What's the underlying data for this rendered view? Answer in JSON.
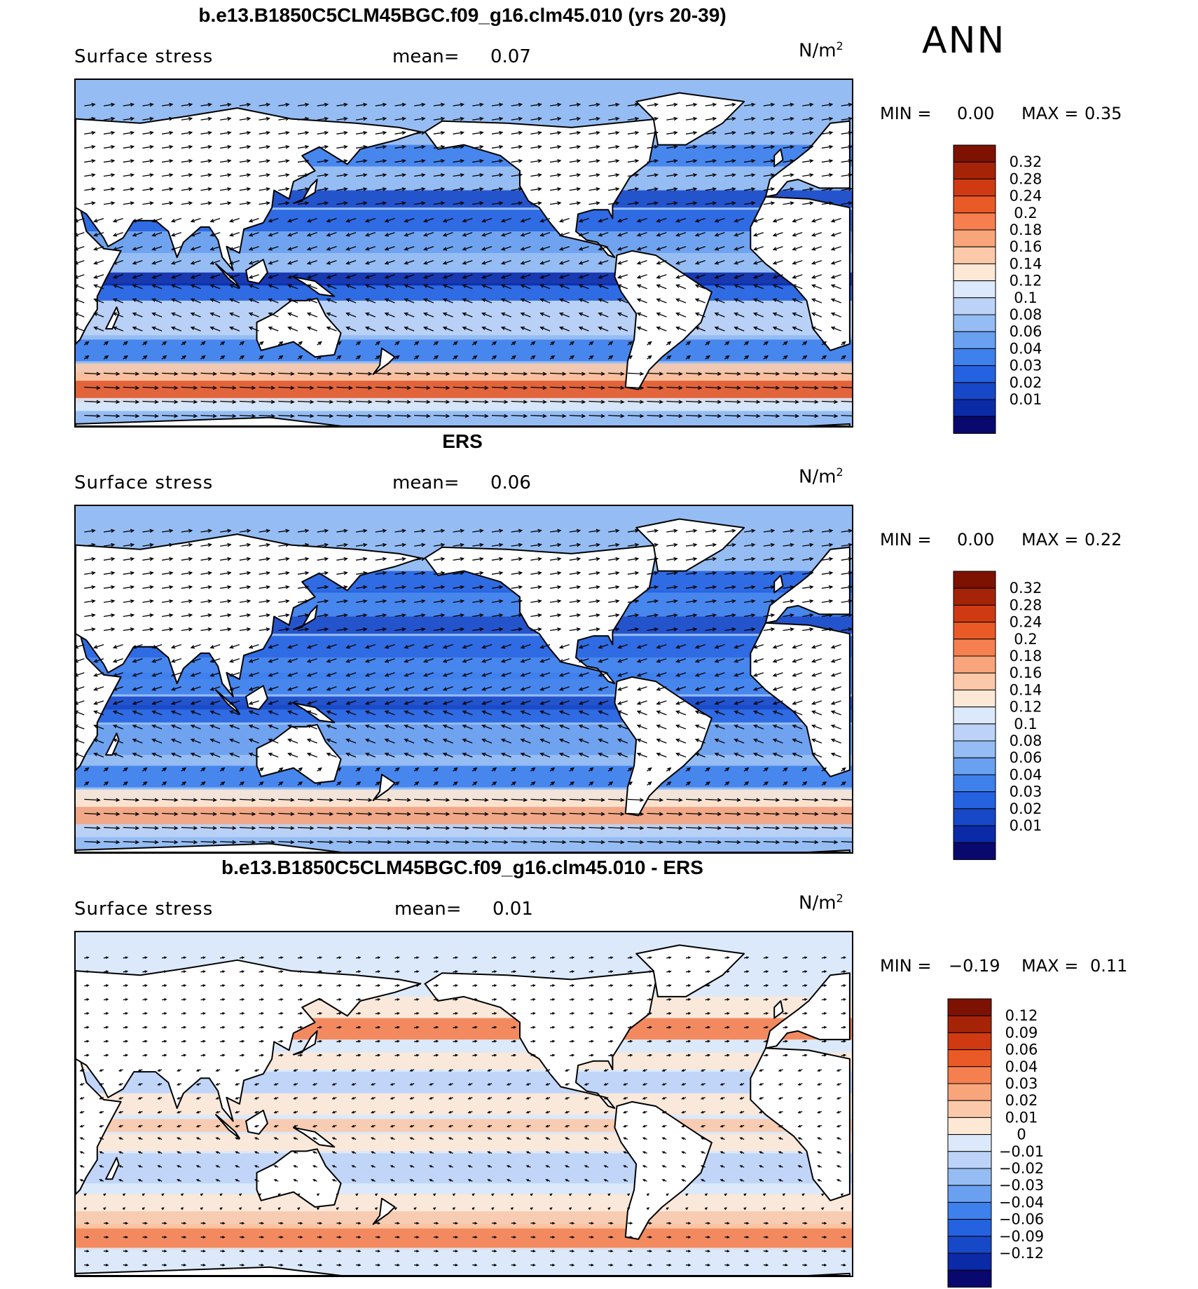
{
  "season": "ANN",
  "colors": {
    "seq": [
      "#08086e",
      "#0b2aa8",
      "#1748c8",
      "#2462e0",
      "#3e80ec",
      "#6aa0f0",
      "#95bdf4",
      "#bcd3f7",
      "#dbe9fb",
      "#fde8d6",
      "#fbc9aa",
      "#f9a57c",
      "#f57f4e",
      "#ea5a27",
      "#cf3a12",
      "#a52408",
      "#7d1203"
    ],
    "diff": [
      "#08086e",
      "#0b2aa8",
      "#1748c8",
      "#2462e0",
      "#3e80ec",
      "#6aa0f0",
      "#95bdf4",
      "#bcd3f7",
      "#dbe9fb",
      "#fde8d6",
      "#fbc9aa",
      "#f9a57c",
      "#f57f4e",
      "#ea5a27",
      "#cf3a12",
      "#a52408",
      "#7d1203"
    ]
  },
  "panels": [
    {
      "title": "b.e13.B1850C5CLM45BGC.f09_g16.clm45.010 (yrs 20-39)",
      "variable": "Surface stress",
      "mean_label": "mean=",
      "mean_value": "0.07",
      "units": "N/m",
      "units_sup": "2",
      "min_label": "MIN =",
      "min_value": "0.00",
      "max_label": "MAX =",
      "max_value": "0.35",
      "colorbar_labels": [
        "0.32",
        "0.28",
        "0.24",
        "0.2",
        "0.18",
        "0.16",
        "0.14",
        "0.12",
        "0.1",
        "0.08",
        "0.06",
        "0.04",
        "0.03",
        "0.02",
        "0.01"
      ]
    },
    {
      "title": "ERS",
      "variable": "Surface stress",
      "mean_label": "mean=",
      "mean_value": "0.06",
      "units": "N/m",
      "units_sup": "2",
      "min_label": "MIN =",
      "min_value": "0.00",
      "max_label": "MAX =",
      "max_value": "0.22",
      "colorbar_labels": [
        "0.32",
        "0.28",
        "0.24",
        "0.2",
        "0.18",
        "0.16",
        "0.14",
        "0.12",
        "0.1",
        "0.08",
        "0.06",
        "0.04",
        "0.03",
        "0.02",
        "0.01"
      ]
    },
    {
      "title": "b.e13.B1850C5CLM45BGC.f09_g16.clm45.010 - ERS",
      "variable": "Surface stress",
      "mean_label": "mean=",
      "mean_value": "0.01",
      "units": "N/m",
      "units_sup": "2",
      "min_label": "MIN =",
      "min_value": "−0.19",
      "max_label": "MAX =",
      "max_value": "0.11",
      "colorbar_labels": [
        "0.12",
        "0.09",
        "0.06",
        "0.04",
        "0.03",
        "0.02",
        "0.01",
        "0",
        "−0.01",
        "−0.02",
        "−0.03",
        "−0.04",
        "−0.06",
        "−0.09",
        "−0.12"
      ]
    }
  ],
  "chart_data": [
    {
      "type": "heatmap",
      "title": "b.e13.B1850C5CLM45BGC.f09_g16.clm45.010 (yrs 20-39)",
      "variable": "Surface stress",
      "units": "N/m2",
      "mean": 0.07,
      "min": 0.0,
      "max": 0.35,
      "x": "longitude",
      "y": "latitude",
      "xlim": [
        30,
        390
      ],
      "ylim": [
        -70,
        90
      ],
      "levels": [
        0.01,
        0.02,
        0.03,
        0.04,
        0.06,
        0.08,
        0.1,
        0.12,
        0.14,
        0.16,
        0.18,
        0.2,
        0.24,
        0.28,
        0.32
      ],
      "overlay": "wind stress vectors"
    },
    {
      "type": "heatmap",
      "title": "ERS",
      "variable": "Surface stress",
      "units": "N/m2",
      "mean": 0.06,
      "min": 0.0,
      "max": 0.22,
      "x": "longitude",
      "y": "latitude",
      "xlim": [
        30,
        390
      ],
      "ylim": [
        -70,
        90
      ],
      "levels": [
        0.01,
        0.02,
        0.03,
        0.04,
        0.06,
        0.08,
        0.1,
        0.12,
        0.14,
        0.16,
        0.18,
        0.2,
        0.24,
        0.28,
        0.32
      ],
      "overlay": "wind stress vectors"
    },
    {
      "type": "heatmap",
      "title": "b.e13.B1850C5CLM45BGC.f09_g16.clm45.010 - ERS",
      "variable": "Surface stress",
      "units": "N/m2",
      "mean": 0.01,
      "min": -0.19,
      "max": 0.11,
      "x": "longitude",
      "y": "latitude",
      "xlim": [
        30,
        390
      ],
      "ylim": [
        -70,
        90
      ],
      "levels": [
        -0.12,
        -0.09,
        -0.06,
        -0.04,
        -0.03,
        -0.02,
        -0.01,
        0,
        0.01,
        0.02,
        0.03,
        0.04,
        0.06,
        0.09,
        0.12
      ],
      "overlay": "wind stress difference vectors"
    }
  ]
}
